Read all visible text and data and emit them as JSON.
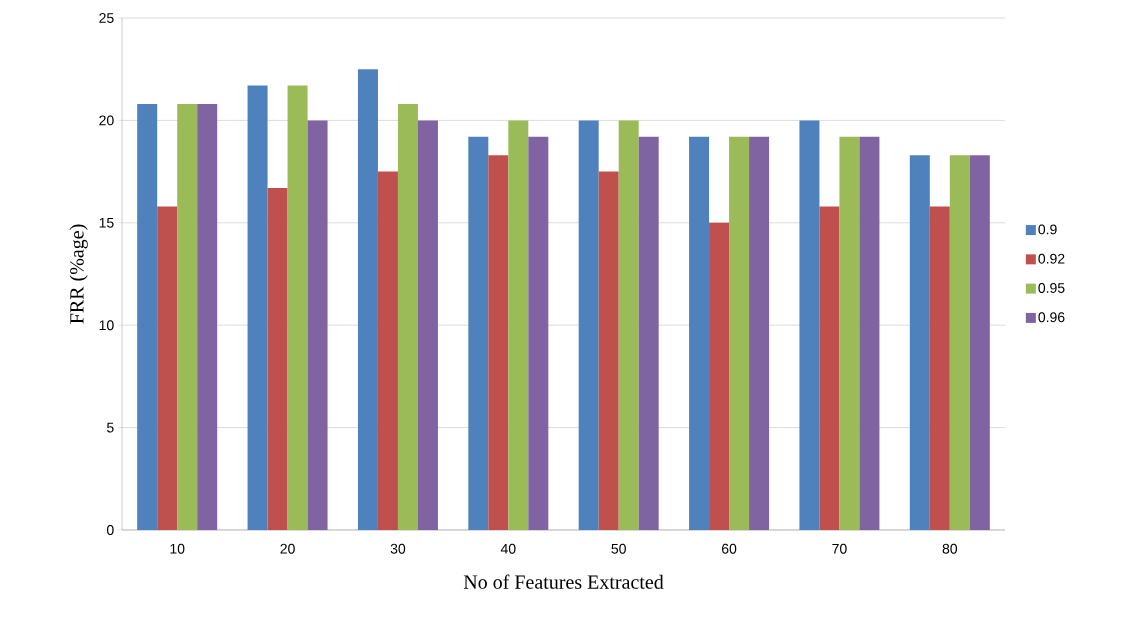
{
  "chart_data": {
    "type": "bar",
    "xlabel": "No of Features Extracted",
    "ylabel": "FRR (%age)",
    "categories": [
      "10",
      "20",
      "30",
      "40",
      "50",
      "60",
      "70",
      "80"
    ],
    "series": [
      {
        "name": "0.9",
        "color": "#4f81bd",
        "values": [
          20.8,
          21.7,
          22.5,
          19.2,
          20,
          19.2,
          20,
          18.3
        ]
      },
      {
        "name": "0.92",
        "color": "#c0504d",
        "values": [
          15.8,
          16.7,
          17.5,
          18.3,
          17.5,
          15,
          15.8,
          15.8
        ]
      },
      {
        "name": "0.95",
        "color": "#9bbb59",
        "values": [
          20.8,
          21.7,
          20.8,
          20,
          20,
          19.2,
          19.2,
          18.3
        ]
      },
      {
        "name": "0.96",
        "color": "#8064a2",
        "values": [
          20.8,
          20,
          20,
          19.2,
          19.2,
          19.2,
          19.2,
          18.3
        ]
      }
    ],
    "ylim": [
      0,
      25
    ],
    "yticks": [
      0,
      5,
      10,
      15,
      20,
      25
    ],
    "grid": "y",
    "legend": "right"
  }
}
